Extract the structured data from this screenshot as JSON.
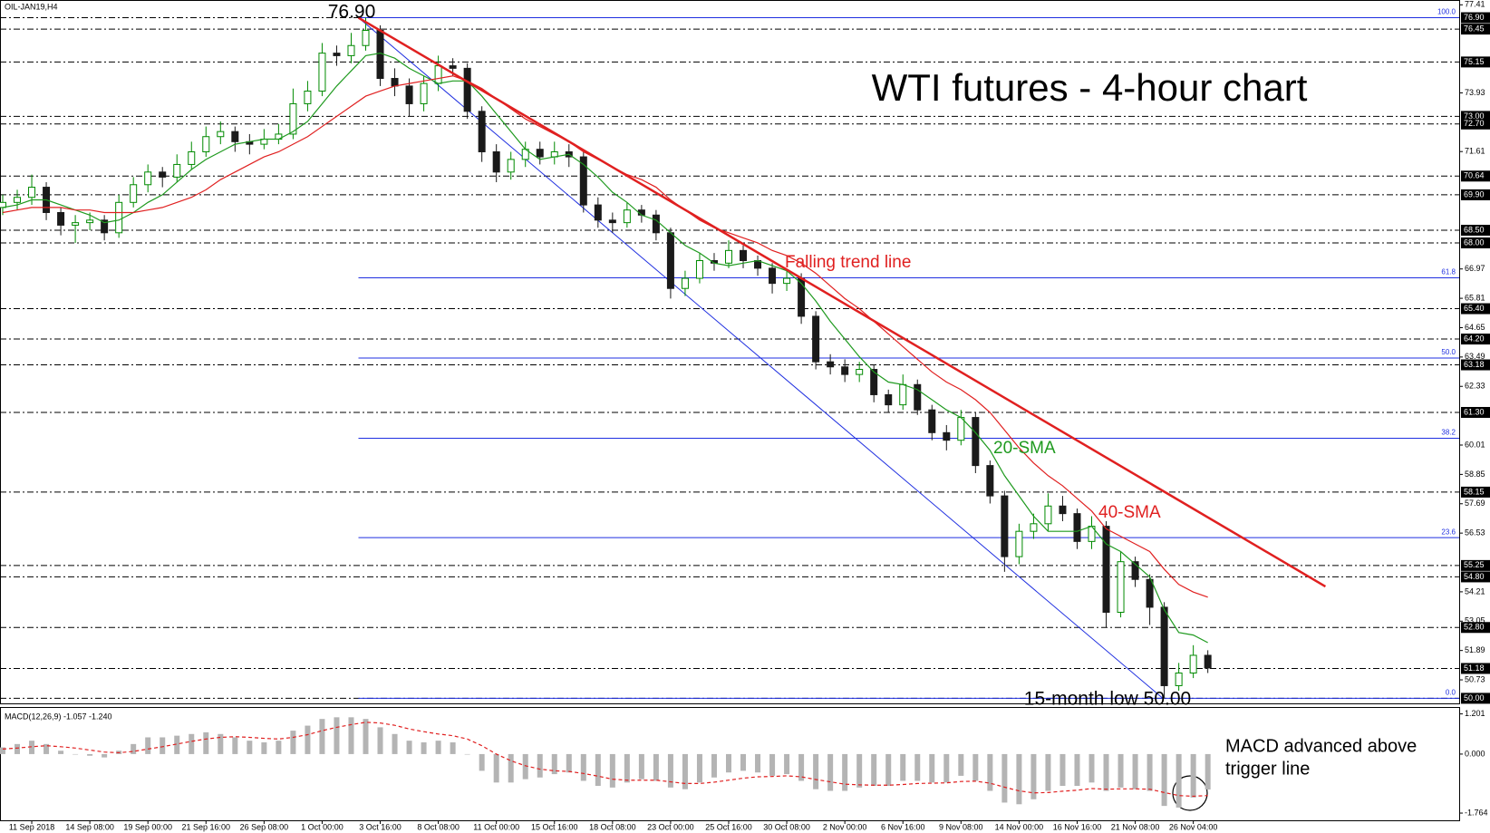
{
  "chart_data": [
    {
      "type": "candlestick",
      "title": "WTI futures - 4-hour chart",
      "subtitle": "OIL-JAN19,H4",
      "up_color": "#008a00",
      "down_color": "#1a1a1a",
      "categories": [
        null,
        null,
        "11 Sep 2018",
        null,
        null,
        null,
        "14 Sep 08:00",
        null,
        null,
        null,
        "19 Sep 00:00",
        null,
        null,
        null,
        "21 Sep 16:00",
        null,
        null,
        null,
        "26 Sep 08:00",
        null,
        null,
        null,
        "1 Oct 00:00",
        null,
        null,
        null,
        "3 Oct 16:00",
        null,
        null,
        null,
        "8 Oct 08:00",
        null,
        null,
        null,
        "11 Oct 00:00",
        null,
        null,
        null,
        "15 Oct 16:00",
        null,
        null,
        null,
        "18 Oct 08:00",
        null,
        null,
        null,
        "23 Oct 00:00",
        null,
        null,
        null,
        "25 Oct 16:00",
        null,
        null,
        null,
        "30 Oct 08:00",
        null,
        null,
        null,
        "2 Nov 00:00",
        null,
        null,
        null,
        "6 Nov 16:00",
        null,
        null,
        null,
        "9 Nov 08:00",
        null,
        null,
        null,
        "14 Nov 00:00",
        null,
        null,
        null,
        "16 Nov 16:00",
        null,
        null,
        null,
        "21 Nov 08:00",
        null,
        null,
        null,
        "26 Nov 04:00",
        null
      ],
      "open": [
        69.4,
        69.6,
        69.8,
        70.2,
        69.2,
        68.7,
        68.8,
        68.9,
        68.4,
        69.6,
        70.3,
        70.8,
        70.6,
        71.1,
        71.6,
        72.2,
        72.4,
        72.0,
        71.9,
        72.1,
        72.3,
        73.5,
        74.0,
        75.5,
        75.4,
        75.8,
        76.4,
        74.5,
        74.2,
        73.5,
        74.3,
        75.0,
        74.9,
        73.2,
        71.6,
        70.8,
        71.3,
        71.7,
        71.4,
        71.6,
        71.4,
        69.5,
        68.9,
        68.8,
        69.3,
        69.1,
        68.4,
        66.2,
        66.6,
        67.3,
        67.2,
        67.7,
        67.3,
        67.0,
        66.4,
        66.6,
        65.1,
        63.3,
        63.1,
        62.8,
        63.0,
        62.0,
        61.6,
        62.4,
        61.4,
        60.5,
        60.2,
        61.1,
        59.2,
        58.0,
        55.6,
        56.6,
        56.9,
        57.6,
        57.3,
        56.2,
        56.8,
        53.4,
        55.4,
        54.7,
        53.6,
        50.5,
        51.0,
        51.7
      ],
      "high": [
        69.9,
        70.1,
        70.7,
        70.4,
        69.4,
        69.1,
        69.2,
        69.1,
        69.9,
        70.6,
        71.1,
        71.0,
        71.5,
        72.0,
        72.6,
        72.8,
        72.6,
        72.3,
        72.5,
        72.7,
        74.1,
        74.4,
        75.9,
        75.8,
        76.3,
        76.9,
        76.6,
        74.9,
        74.5,
        74.6,
        75.4,
        75.3,
        75.1,
        73.4,
        71.9,
        71.6,
        72.0,
        72.0,
        72.0,
        71.9,
        71.6,
        69.8,
        69.2,
        69.6,
        69.5,
        69.3,
        68.6,
        66.9,
        67.6,
        67.6,
        68.1,
        67.9,
        67.5,
        67.2,
        66.9,
        66.8,
        65.3,
        63.6,
        63.4,
        63.3,
        63.2,
        62.2,
        62.8,
        62.6,
        61.6,
        60.8,
        61.4,
        61.3,
        59.4,
        58.2,
        56.9,
        57.3,
        58.1,
        58.0,
        57.5,
        57.2,
        57.0,
        55.8,
        55.6,
        54.9,
        53.8,
        51.4,
        52.1,
        51.9
      ],
      "low": [
        69.1,
        69.3,
        69.5,
        68.9,
        68.3,
        68.0,
        68.5,
        68.1,
        68.2,
        69.4,
        70.0,
        70.2,
        70.4,
        70.9,
        71.4,
        71.9,
        71.6,
        71.5,
        71.7,
        71.9,
        72.1,
        73.2,
        73.8,
        75.0,
        75.1,
        75.6,
        74.2,
        73.8,
        73.0,
        73.2,
        74.0,
        74.6,
        72.9,
        71.2,
        70.4,
        70.5,
        71.0,
        71.1,
        71.1,
        71.0,
        69.2,
        68.6,
        68.4,
        68.6,
        68.8,
        68.1,
        65.8,
        65.9,
        66.4,
        66.9,
        67.0,
        67.0,
        66.7,
        66.0,
        66.1,
        64.8,
        63.0,
        62.8,
        62.5,
        62.5,
        61.7,
        61.3,
        61.4,
        61.2,
        60.2,
        59.8,
        60.0,
        58.9,
        57.7,
        55.0,
        55.3,
        56.3,
        56.6,
        57.0,
        55.9,
        55.9,
        52.8,
        53.2,
        54.4,
        52.9,
        50.0,
        50.3,
        50.8,
        51.0
      ],
      "close": [
        69.6,
        69.8,
        70.2,
        69.2,
        68.7,
        68.8,
        68.9,
        68.4,
        69.6,
        70.3,
        70.8,
        70.6,
        71.1,
        71.6,
        72.2,
        72.4,
        72.0,
        71.9,
        72.1,
        72.3,
        73.5,
        74.0,
        75.5,
        75.4,
        75.8,
        76.4,
        74.5,
        74.2,
        73.5,
        74.3,
        75.0,
        74.9,
        73.2,
        71.6,
        70.8,
        71.3,
        71.7,
        71.4,
        71.6,
        71.4,
        69.5,
        68.9,
        68.8,
        69.3,
        69.1,
        68.4,
        66.2,
        66.6,
        67.3,
        67.2,
        67.7,
        67.3,
        67.0,
        66.4,
        66.6,
        65.1,
        63.3,
        63.1,
        62.8,
        63.0,
        62.0,
        61.6,
        62.4,
        61.4,
        60.5,
        60.2,
        61.1,
        59.2,
        58.0,
        55.6,
        56.6,
        56.9,
        57.6,
        57.3,
        56.2,
        56.8,
        53.4,
        55.4,
        54.7,
        53.6,
        50.5,
        51.0,
        51.7,
        51.2
      ],
      "series": [
        {
          "name": "20-SMA",
          "color": "#1f9a1f",
          "values": [
            69.4,
            69.5,
            69.7,
            69.7,
            69.5,
            69.3,
            69.1,
            68.8,
            68.9,
            69.2,
            69.6,
            69.9,
            70.4,
            70.9,
            71.3,
            71.6,
            71.9,
            72.0,
            72.1,
            72.1,
            72.4,
            72.8,
            73.5,
            74.2,
            74.8,
            75.4,
            75.5,
            75.3,
            74.9,
            74.6,
            74.3,
            74.4,
            74.4,
            73.8,
            73.1,
            72.4,
            71.7,
            71.3,
            71.4,
            71.5,
            71.1,
            70.6,
            70.0,
            69.6,
            69.1,
            68.9,
            68.4,
            67.9,
            67.6,
            67.2,
            67.1,
            67.2,
            67.3,
            67.1,
            66.9,
            66.4,
            65.7,
            64.9,
            64.2,
            63.5,
            62.9,
            62.5,
            62.4,
            62.2,
            61.8,
            61.4,
            61.1,
            60.5,
            59.8,
            58.8,
            58.0,
            57.2,
            56.6,
            56.6,
            56.6,
            56.8,
            56.1,
            55.8,
            55.3,
            54.8,
            53.5,
            52.6,
            52.5,
            52.2
          ]
        },
        {
          "name": "40-SMA",
          "color": "#e02020",
          "values": [
            69.2,
            69.3,
            69.4,
            69.4,
            69.4,
            69.3,
            69.3,
            69.2,
            69.2,
            69.2,
            69.3,
            69.4,
            69.6,
            69.8,
            70.1,
            70.5,
            70.8,
            71.1,
            71.4,
            71.6,
            71.9,
            72.2,
            72.6,
            73.0,
            73.4,
            73.8,
            74.0,
            74.2,
            74.3,
            74.4,
            74.5,
            74.6,
            74.4,
            74.1,
            73.7,
            73.3,
            72.9,
            72.6,
            72.3,
            72.0,
            71.6,
            71.3,
            71.0,
            70.7,
            70.5,
            70.2,
            69.7,
            69.3,
            68.9,
            68.6,
            68.4,
            68.2,
            68.0,
            67.7,
            67.5,
            67.2,
            66.8,
            66.3,
            65.8,
            65.4,
            64.9,
            64.4,
            63.9,
            63.4,
            62.9,
            62.5,
            62.2,
            61.8,
            61.3,
            60.6,
            59.9,
            59.3,
            58.8,
            58.4,
            57.9,
            57.4,
            56.7,
            56.4,
            56.1,
            55.8,
            55.1,
            54.5,
            54.2,
            54.0
          ]
        }
      ],
      "trend_line": {
        "label": "Falling trend line",
        "color": "#e02020",
        "values": [
          76.9,
          54.42
        ]
      },
      "channel_line": {
        "color": "#1f2fe0",
        "values": [
          76.9,
          50.0
        ]
      },
      "peak_label": "76.90",
      "low_label": "15-month low 50.00",
      "fib_levels": [
        {
          "level": "100.0",
          "price": 76.9
        },
        {
          "level": "61.8",
          "price": 66.62
        },
        {
          "level": "50.0",
          "price": 63.45
        },
        {
          "level": "38.2",
          "price": 60.28
        },
        {
          "level": "23.6",
          "price": 56.35
        },
        {
          "level": "0.0",
          "price": 50.0
        }
      ],
      "ylim": [
        49.8,
        77.6
      ],
      "yticks": [
        77.41,
        73.93,
        71.61,
        66.97,
        65.81,
        64.65,
        63.49,
        62.33,
        60.01,
        58.85,
        57.69,
        56.53,
        54.21,
        53.05,
        51.89,
        50.73
      ],
      "levels": [
        {
          "value": 76.9,
          "label": "76.90"
        },
        76.45,
        75.15,
        {
          "value": 73.0,
          "label": "73.00"
        },
        {
          "value": 72.7,
          "label": "72.70"
        },
        70.64,
        {
          "value": 69.9,
          "label": "69.90"
        },
        {
          "value": 68.5,
          "label": "68.50"
        },
        {
          "value": 68.0,
          "label": "68.00"
        },
        {
          "value": 65.4,
          "label": "65.40"
        },
        {
          "value": 64.2,
          "label": "64.20"
        },
        63.18,
        {
          "value": 61.3,
          "label": "61.30"
        },
        58.15,
        55.25,
        {
          "value": 54.8,
          "label": "54.80"
        },
        {
          "value": 52.8,
          "label": "52.80"
        },
        51.18,
        {
          "value": 50.0,
          "label": "50.00"
        }
      ]
    },
    {
      "type": "macd",
      "title": "MACD(12,26,9) -1.057 -1.240",
      "macd": {
        "color": "#b4b4b4",
        "values": [
          0.2,
          0.3,
          0.4,
          0.3,
          0.1,
          0.0,
          -0.05,
          -0.1,
          0.1,
          0.3,
          0.5,
          0.5,
          0.55,
          0.6,
          0.65,
          0.6,
          0.5,
          0.4,
          0.35,
          0.4,
          0.7,
          0.85,
          1.05,
          1.1,
          1.1,
          1.05,
          0.8,
          0.6,
          0.4,
          0.35,
          0.4,
          0.35,
          0.0,
          -0.5,
          -0.85,
          -0.85,
          -0.75,
          -0.7,
          -0.6,
          -0.55,
          -0.8,
          -0.95,
          -1.0,
          -0.85,
          -0.75,
          -0.8,
          -1.0,
          -1.05,
          -0.85,
          -0.7,
          -0.55,
          -0.5,
          -0.55,
          -0.65,
          -0.6,
          -0.8,
          -1.05,
          -1.1,
          -1.1,
          -1.0,
          -0.95,
          -0.95,
          -0.8,
          -0.8,
          -0.85,
          -0.85,
          -0.65,
          -0.8,
          -1.1,
          -1.45,
          -1.5,
          -1.35,
          -1.1,
          -0.95,
          -0.95,
          -0.85,
          -1.1,
          -1.0,
          -1.05,
          -1.1,
          -1.55,
          -1.6,
          -1.3,
          -1.06
        ]
      },
      "signal": {
        "color": "#e02020",
        "values": [
          0.15,
          0.18,
          0.22,
          0.25,
          0.22,
          0.18,
          0.12,
          0.06,
          0.04,
          0.08,
          0.15,
          0.22,
          0.3,
          0.38,
          0.45,
          0.5,
          0.52,
          0.5,
          0.47,
          0.45,
          0.5,
          0.58,
          0.7,
          0.8,
          0.88,
          0.95,
          0.93,
          0.86,
          0.75,
          0.67,
          0.6,
          0.55,
          0.45,
          0.25,
          0.0,
          -0.2,
          -0.35,
          -0.45,
          -0.5,
          -0.52,
          -0.58,
          -0.66,
          -0.75,
          -0.78,
          -0.78,
          -0.78,
          -0.83,
          -0.88,
          -0.88,
          -0.84,
          -0.78,
          -0.72,
          -0.68,
          -0.67,
          -0.65,
          -0.68,
          -0.76,
          -0.83,
          -0.9,
          -0.92,
          -0.93,
          -0.93,
          -0.91,
          -0.88,
          -0.87,
          -0.86,
          -0.82,
          -0.81,
          -0.87,
          -0.99,
          -1.1,
          -1.16,
          -1.15,
          -1.11,
          -1.08,
          -1.03,
          -1.05,
          -1.04,
          -1.04,
          -1.05,
          -1.15,
          -1.24,
          -1.26,
          -1.24
        ]
      },
      "annotation": [
        "MACD advanced above",
        "trigger line"
      ],
      "ylim": [
        -1.98,
        1.38
      ],
      "yticks": [
        1.201,
        {
          "value": 0,
          "label": "0.000"
        },
        -1.764
      ]
    }
  ]
}
